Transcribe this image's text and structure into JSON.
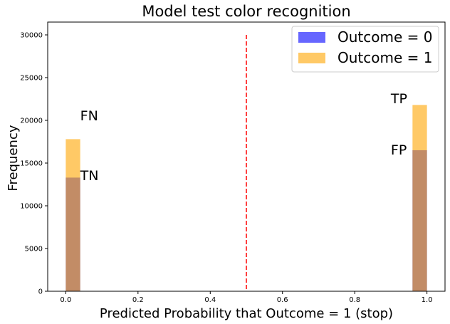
{
  "chart_data": {
    "type": "bar",
    "title": "Model test color recognition",
    "xlabel": "Predicted Probability that Outcome = 1 (stop)",
    "ylabel": "Frequency",
    "xlim": [
      -0.05,
      1.05
    ],
    "ylim": [
      0,
      31500
    ],
    "x_ticks": [
      "0.0",
      "0.2",
      "0.4",
      "0.6",
      "0.8",
      "1.0"
    ],
    "y_ticks": [
      "0",
      "5000",
      "10000",
      "15000",
      "20000",
      "25000",
      "30000"
    ],
    "bin_width": 0.04,
    "series": [
      {
        "name": "Outcome = 0",
        "color": "#0000ff",
        "opacity": 0.6,
        "bins": [
          {
            "x0": 0.0,
            "x1": 0.04,
            "value": 13300
          },
          {
            "x0": 0.96,
            "x1": 1.0,
            "value": 16500
          }
        ]
      },
      {
        "name": "Outcome = 1",
        "color": "#ffa500",
        "opacity": 0.6,
        "bins": [
          {
            "x0": 0.0,
            "x1": 0.04,
            "value": 17800
          },
          {
            "x0": 0.96,
            "x1": 1.0,
            "value": 21800
          }
        ]
      }
    ],
    "threshold": {
      "x": 0.5,
      "y_top": 30000,
      "color": "#ff0000"
    },
    "annotations": [
      {
        "text": "FN",
        "x": 0.04,
        "y": 20000
      },
      {
        "text": "TN",
        "x": 0.04,
        "y": 13000
      },
      {
        "text": "TP",
        "x": 0.9,
        "y": 22000
      },
      {
        "text": "FP",
        "x": 0.9,
        "y": 16000
      }
    ],
    "legend": {
      "position": "top-right"
    }
  }
}
